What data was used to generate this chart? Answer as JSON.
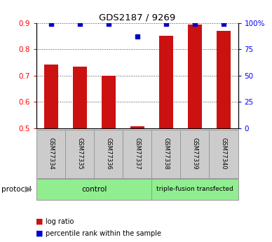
{
  "title": "GDS2187 / 9269",
  "samples": [
    "GSM77334",
    "GSM77335",
    "GSM77336",
    "GSM77337",
    "GSM77338",
    "GSM77339",
    "GSM77340"
  ],
  "log_ratio": [
    0.743,
    0.733,
    0.7,
    0.508,
    0.852,
    0.895,
    0.87
  ],
  "percentile_rank": [
    99,
    99,
    99,
    87,
    99,
    99,
    99
  ],
  "ylim_left": [
    0.5,
    0.9
  ],
  "ylim_right": [
    0,
    100
  ],
  "yticks_left": [
    0.5,
    0.6,
    0.7,
    0.8,
    0.9
  ],
  "yticks_right": [
    0,
    25,
    50,
    75,
    100
  ],
  "yticklabels_right": [
    "0",
    "25",
    "50",
    "75",
    "100%"
  ],
  "bar_color": "#cc1111",
  "dot_color": "#0000cc",
  "bar_width": 0.5,
  "control_indices": [
    0,
    1,
    2,
    3
  ],
  "transfected_indices": [
    4,
    5,
    6
  ],
  "group_labels": [
    "control",
    "triple-fusion transfected"
  ],
  "group_color": "#90ee90",
  "protocol_label": "protocol",
  "legend_log_ratio": "log ratio",
  "legend_percentile": "percentile rank within the sample",
  "sample_box_color": "#cccccc",
  "sample_box_edge_color": "#999999",
  "grid_style": "dotted",
  "grid_color": "#444444",
  "bg_color": "#ffffff"
}
